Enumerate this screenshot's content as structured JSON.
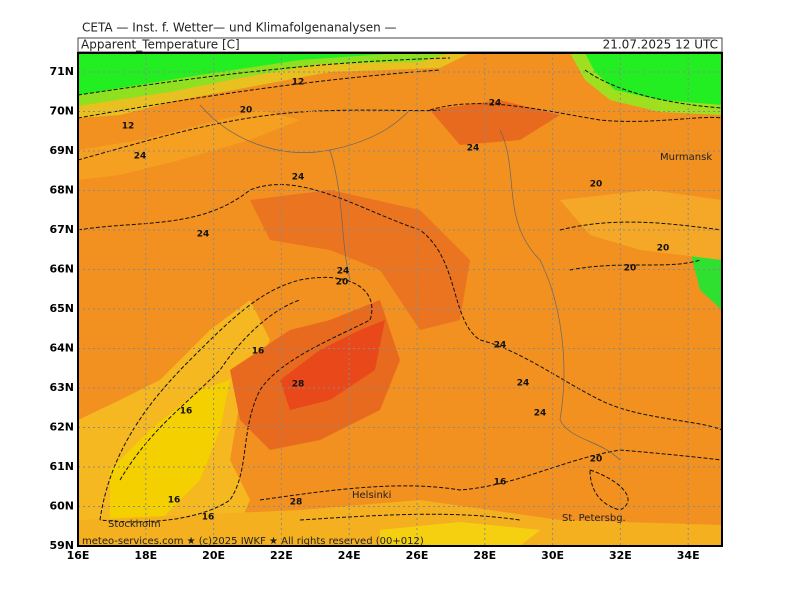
{
  "header": "CETA — Inst. f. Wetter— und Klimafolgenanalysen —",
  "title": "Apparent_Temperature [C]",
  "date": "21.07.2025 12 UTC",
  "lat_labels": [
    {
      "value": 71,
      "label": "71N"
    },
    {
      "value": 70,
      "label": "70N"
    },
    {
      "value": 69,
      "label": "69N"
    },
    {
      "value": 68,
      "label": "68N"
    },
    {
      "value": 67,
      "label": "67N"
    },
    {
      "value": 66,
      "label": "66N"
    },
    {
      "value": 65,
      "label": "65N"
    },
    {
      "value": 64,
      "label": "64N"
    },
    {
      "value": 63,
      "label": "63N"
    },
    {
      "value": 62,
      "label": "62N"
    },
    {
      "value": 61,
      "label": "61N"
    },
    {
      "value": 60,
      "label": "60N"
    },
    {
      "value": 59,
      "label": "59N"
    }
  ],
  "lon_labels": [
    {
      "value": 16,
      "label": "16E"
    },
    {
      "value": 18,
      "label": "18E"
    },
    {
      "value": 20,
      "label": "20E"
    },
    {
      "value": 22,
      "label": "22E"
    },
    {
      "value": 24,
      "label": "24E"
    },
    {
      "value": 26,
      "label": "26E"
    },
    {
      "value": 28,
      "label": "28E"
    },
    {
      "value": 30,
      "label": "30E"
    },
    {
      "value": 32,
      "label": "32E"
    },
    {
      "value": 34,
      "label": "34E"
    }
  ],
  "places": [
    "Murmansk",
    "Helsinki",
    "Stockholm",
    "St. Petersbg."
  ],
  "contour_labels": [
    24,
    24,
    24,
    24,
    24,
    24,
    24,
    24,
    24,
    20,
    20,
    20,
    20,
    20,
    16,
    16,
    16,
    16,
    12,
    12,
    28,
    28,
    20,
    16
  ],
  "footer": "meteo-services.com ★ (c)2025 IWKF ★ All rights reserved (00+012)"
}
